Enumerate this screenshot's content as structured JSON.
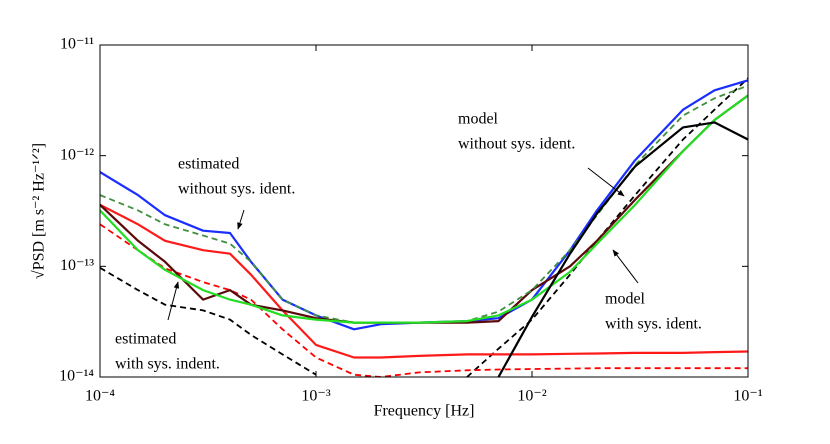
{
  "chart_data": {
    "type": "line",
    "xlabel": "Frequency [Hz]",
    "ylabel": "√PSD [m s⁻² Hz⁻¹ᐟ²]",
    "log_x": true,
    "log_y": true,
    "xlim": [
      0.0001,
      0.1
    ],
    "ylim": [
      1e-14,
      1e-11
    ],
    "xticks": [
      {
        "value": 0.0001,
        "label": "10⁻⁴"
      },
      {
        "value": 0.001,
        "label": "10⁻³"
      },
      {
        "value": 0.01,
        "label": "10⁻²"
      },
      {
        "value": 0.1,
        "label": "10⁻¹"
      }
    ],
    "yticks": [
      {
        "value": 1e-14,
        "label": "10⁻¹⁴"
      },
      {
        "value": 1e-13,
        "label": "10⁻¹³"
      },
      {
        "value": 1e-12,
        "label": "10⁻¹²"
      },
      {
        "value": 1e-11,
        "label": "10⁻¹¹"
      }
    ],
    "x": [
      0.0001,
      0.00015,
      0.0002,
      0.0003,
      0.0004,
      0.0005,
      0.0007,
      0.001,
      0.0015,
      0.002,
      0.003,
      0.005,
      0.007,
      0.01,
      0.015,
      0.02,
      0.03,
      0.05,
      0.07,
      0.1
    ],
    "series": [
      {
        "color": "#000000",
        "dashed": true,
        "values": [
          9.7e-14,
          6.1e-14,
          4.5e-14,
          4e-14,
          3.3e-14,
          2.4e-14,
          1.6e-14,
          1.05e-14,
          null,
          null,
          null,
          1e-14,
          1.8e-14,
          3.3e-14,
          8.4e-14,
          1.7e-13,
          4.4e-13,
          1.4e-12,
          2.6e-12,
          5e-12
        ]
      },
      {
        "color": "#ff0000",
        "dashed": true,
        "values": [
          2.4e-13,
          1.4e-13,
          9.6e-14,
          7.2e-14,
          6.1e-14,
          5e-14,
          2.7e-14,
          1.5e-14,
          1.05e-14,
          1e-14,
          1.1e-14,
          1.15e-14,
          1.17e-14,
          1.18e-14,
          1.19e-14,
          1.2e-14,
          1.2e-14,
          1.2e-14,
          1.2e-14,
          1.2e-14
        ]
      },
      {
        "color": "#ff1a1a",
        "dashed": false,
        "values": [
          3.6e-13,
          2.4e-13,
          1.7e-13,
          1.4e-13,
          1.3e-13,
          8.4e-14,
          4e-14,
          1.95e-14,
          1.5e-14,
          1.5e-14,
          1.55e-14,
          1.6e-14,
          1.6e-14,
          1.6e-14,
          1.62e-14,
          1.63e-14,
          1.65e-14,
          1.65e-14,
          1.68e-14,
          1.7e-14
        ]
      },
      {
        "color": "#1a2eff",
        "dashed": false,
        "values": [
          7.1e-13,
          4.4e-13,
          2.9e-13,
          2.1e-13,
          2e-13,
          1.1e-13,
          5e-14,
          3.6e-14,
          2.7e-14,
          3e-14,
          3.1e-14,
          3.2e-14,
          3.4e-14,
          5e-14,
          1.4e-13,
          3.2e-13,
          9.1e-13,
          2.6e-12,
          3.9e-12,
          4.8e-12
        ]
      },
      {
        "color": "#5a0a0a",
        "dashed": false,
        "values": [
          3.6e-13,
          1.7e-13,
          1.1e-13,
          5e-14,
          6.1e-14,
          4.5e-14,
          4e-14,
          3.4e-14,
          3.1e-14,
          3.1e-14,
          3.1e-14,
          3.1e-14,
          3.2e-14,
          6.1e-14,
          1e-13,
          1.7e-13,
          4e-13,
          1.1e-12,
          2.1e-12,
          3.5e-12
        ]
      },
      {
        "color": "#3f8f3f",
        "dashed": true,
        "values": [
          4.4e-13,
          3.2e-13,
          2.4e-13,
          1.9e-13,
          1.6e-13,
          1.1e-13,
          5e-14,
          3.6e-14,
          3.1e-14,
          3.1e-14,
          3.1e-14,
          3.2e-14,
          3.9e-14,
          6.1e-14,
          1.4e-13,
          2.9e-13,
          8.2e-13,
          2.3e-12,
          3.3e-12,
          4.3e-12
        ]
      },
      {
        "color": "#22dd22",
        "dashed": false,
        "values": [
          3.2e-13,
          1.4e-13,
          9.3e-14,
          6.1e-14,
          5e-14,
          4.5e-14,
          3.6e-14,
          3.3e-14,
          3.1e-14,
          3.1e-14,
          3.1e-14,
          3.2e-14,
          3.6e-14,
          5e-14,
          8.9e-14,
          1.6e-13,
          3.6e-13,
          1.1e-12,
          2.1e-12,
          3.5e-12
        ]
      },
      {
        "color": "#000000",
        "dashed": false,
        "values": [
          null,
          null,
          null,
          null,
          null,
          null,
          null,
          null,
          null,
          null,
          null,
          null,
          1e-14,
          3.5e-14,
          1.3e-13,
          3e-13,
          8e-13,
          1.8e-12,
          2e-12,
          1.4e-12
        ]
      }
    ],
    "annotations": [
      {
        "lines": [
          "estimated",
          "without sys. ident."
        ]
      },
      {
        "lines": [
          "model",
          "without sys. ident."
        ]
      },
      {
        "lines": [
          "model",
          "with sys. ident."
        ]
      },
      {
        "lines": [
          "estimated",
          "with sys. indent."
        ]
      }
    ]
  }
}
